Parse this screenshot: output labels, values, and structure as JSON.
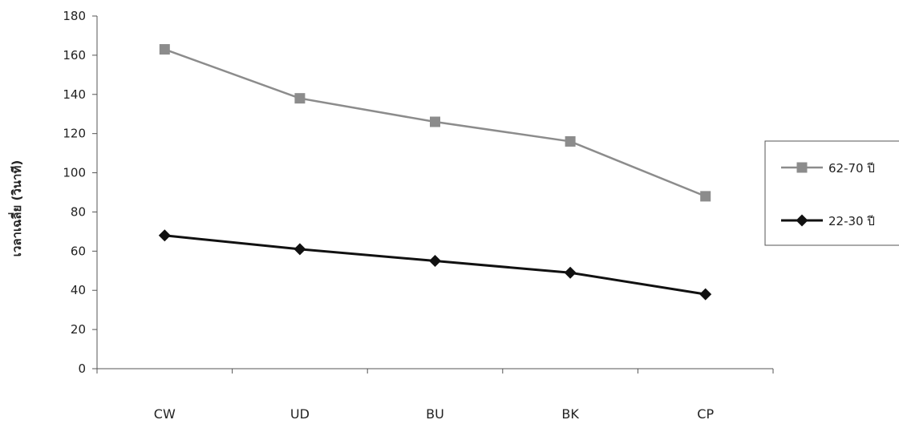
{
  "chart_data": {
    "type": "line",
    "title": "",
    "xlabel": "",
    "ylabel": "เวลาเฉลี่ย (วินาที)",
    "categories": [
      "CW",
      "UD",
      "BU",
      "BK",
      "CP"
    ],
    "ylim": [
      0,
      180
    ],
    "yticks": [
      0,
      20,
      40,
      60,
      80,
      100,
      120,
      140,
      160,
      180
    ],
    "grid": false,
    "legend_position": "right",
    "series": [
      {
        "name": "62-70 ปี",
        "values": [
          163,
          138,
          126,
          116,
          88
        ],
        "color": "#8c8c8c",
        "marker": "square"
      },
      {
        "name": "22-30 ปี",
        "values": [
          68,
          61,
          55,
          49,
          38
        ],
        "color": "#111111",
        "marker": "diamond"
      }
    ]
  }
}
